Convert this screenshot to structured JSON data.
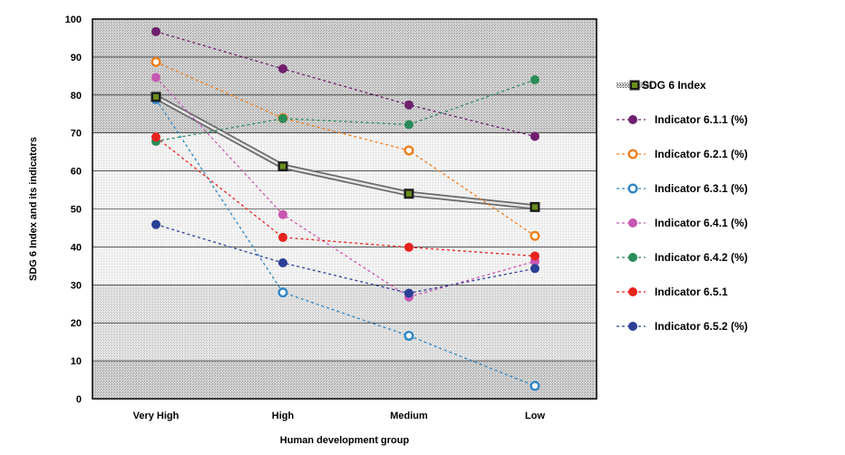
{
  "chart_data": {
    "type": "line",
    "categories": [
      "Very High",
      "High",
      "Medium",
      "Low"
    ],
    "xlabel": "Human development group",
    "ylabel": "SDG 6 Index and its indicators",
    "ylim": [
      0,
      100
    ],
    "yticks": [
      0,
      10,
      20,
      30,
      40,
      50,
      60,
      70,
      80,
      90,
      100
    ],
    "legend_position": "right",
    "series": [
      {
        "name": "SDG 6 Index",
        "values": [
          79.5,
          61.2,
          54.0,
          50.5
        ],
        "color": "#6a8f1a",
        "style": "solid-thick",
        "marker": "square"
      },
      {
        "name": "Indicator 6.1.1 (%)",
        "values": [
          96.7,
          86.9,
          77.4,
          69.1
        ],
        "color": "#6f1f6e",
        "style": "dashed",
        "marker": "filled-circle"
      },
      {
        "name": "Indicator 6.2.1 (%)",
        "values": [
          88.7,
          73.9,
          65.4,
          42.9
        ],
        "color": "#f07e1c",
        "style": "dashed",
        "marker": "ring"
      },
      {
        "name": "Indicator 6.3.1 (%)",
        "values": [
          78.9,
          28.0,
          16.6,
          3.4
        ],
        "color": "#2f87c6",
        "style": "dashed",
        "marker": "ring"
      },
      {
        "name": "Indicator 6.4.1 (%)",
        "values": [
          84.6,
          48.5,
          26.8,
          36.2
        ],
        "color": "#c857b2",
        "style": "dashed",
        "marker": "filled-circle"
      },
      {
        "name": "Indicator 6.4.2 (%)",
        "values": [
          67.8,
          73.8,
          72.2,
          84.0
        ],
        "color": "#2a8c5a",
        "style": "dashed",
        "marker": "filled-circle"
      },
      {
        "name": "Indicator 6.5.1",
        "values": [
          68.9,
          42.5,
          39.9,
          37.6
        ],
        "color": "#e8231f",
        "style": "dashed",
        "marker": "filled-circle"
      },
      {
        "name": "Indicator 6.5.2 (%)",
        "values": [
          45.9,
          35.8,
          27.8,
          34.3
        ],
        "color": "#2b3f96",
        "style": "dashed",
        "marker": "filled-circle"
      }
    ]
  }
}
